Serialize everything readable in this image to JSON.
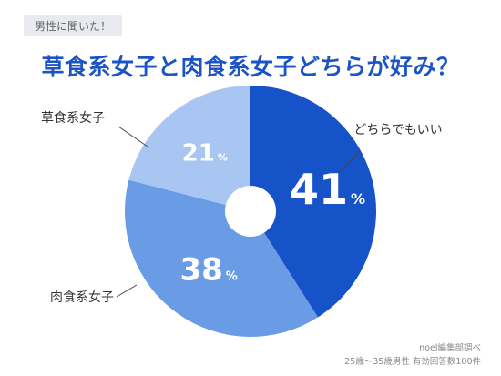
{
  "badge": "男性に聞いた！",
  "title": "草食系女子と肉食系女子どちらが好み？",
  "source": [
    "noel編集部調べ",
    "25歳～35歳男性 有効回答数100件"
  ],
  "colors": {
    "title": "#1c54c4",
    "leader_lines": "#444444"
  },
  "chart_data": {
    "type": "pie",
    "title": "草食系女子と肉食系女子どちらが好み？",
    "donut_hole": true,
    "unit": "%",
    "slices": [
      {
        "label": "どちらでもいい",
        "value": 41,
        "color": "#1652c8"
      },
      {
        "label": "肉食系女子",
        "value": 38,
        "color": "#6a9ce6"
      },
      {
        "label": "草食系女子",
        "value": 21,
        "color": "#a9c5f2"
      }
    ]
  }
}
